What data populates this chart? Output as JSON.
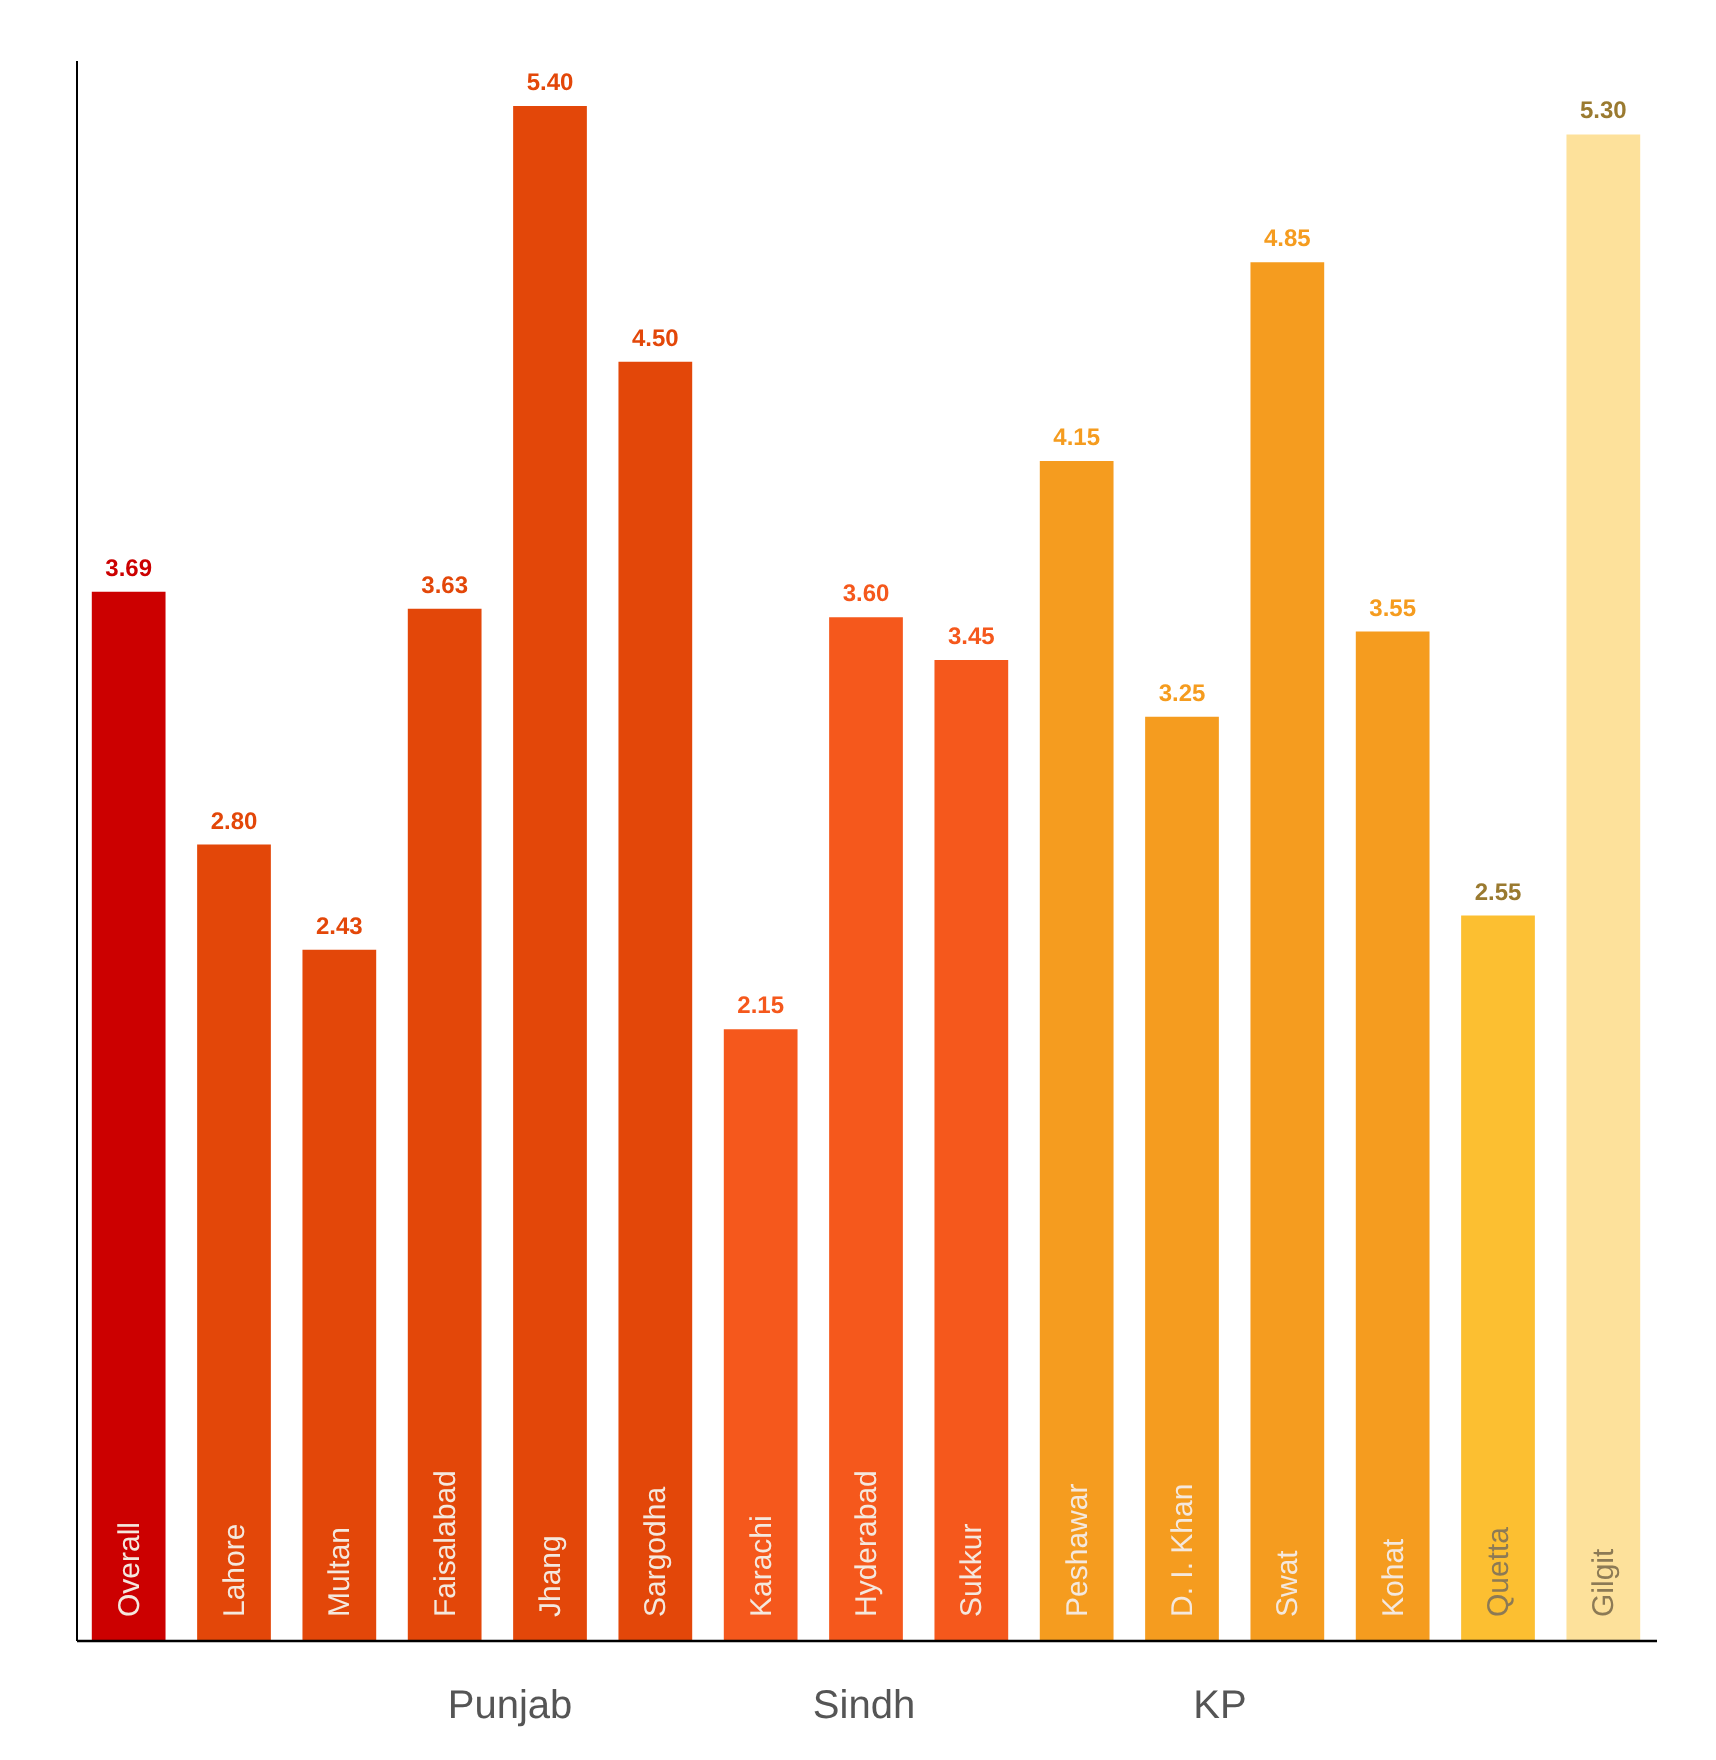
{
  "chart_data": {
    "type": "bar",
    "categories": [
      "Overall",
      "Lahore",
      "Multan",
      "Faisalabad",
      "Jhang",
      "Sargodha",
      "Karachi",
      "Hyderabad",
      "Sukkur",
      "Peshawar",
      "D. I. Khan",
      "Swat",
      "Kohat",
      "Quetta",
      "Gilgit"
    ],
    "values": [
      3.69,
      2.8,
      2.43,
      3.63,
      5.4,
      4.5,
      2.15,
      3.6,
      3.45,
      4.15,
      3.25,
      4.85,
      3.55,
      2.55,
      5.3
    ],
    "value_labels": [
      "3.69",
      "2.80",
      "2.43",
      "3.63",
      "5.40",
      "4.50",
      "2.15",
      "3.60",
      "3.45",
      "4.15",
      "3.25",
      "4.85",
      "3.55",
      "2.55",
      "5.30"
    ],
    "colors": [
      "#cc0000",
      "#e34709",
      "#e34709",
      "#e34709",
      "#e34709",
      "#e34709",
      "#f5581c",
      "#f5581c",
      "#f5581c",
      "#f59c1f",
      "#f59c1f",
      "#f59c1f",
      "#f59c1f",
      "#fcbf31",
      "#fde19b"
    ],
    "annotations": [
      "Punjab",
      "Sindh",
      "KP"
    ],
    "grid": false
  }
}
